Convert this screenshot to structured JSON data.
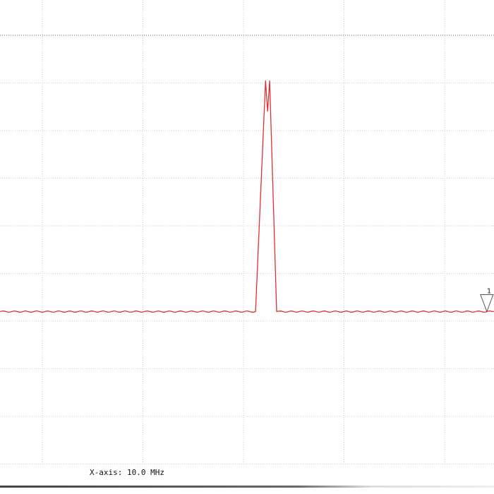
{
  "xaxis_label": "X-axis: 10.0 MHz",
  "marker_label": "1",
  "colors": {
    "trace": "#e03030",
    "grid": "#cccccc",
    "reference_line": "#666666"
  },
  "chart_data": {
    "type": "line",
    "title": "",
    "xlabel": "X-axis: 10.0 MHz",
    "ylabel": "",
    "x_units": "MHz (0 at first visible vertical gridline)",
    "y_units": "divisions (0 at top reference line)",
    "xlim": [
      -4.2,
      44.9
    ],
    "ylim": [
      -9.0,
      0.75
    ],
    "grid": true,
    "series": [
      {
        "points": [
          [
            -4.2,
            -5.8
          ],
          [
            21.2,
            -5.8
          ],
          [
            22.2,
            -0.95
          ],
          [
            22.4,
            -1.6
          ],
          [
            22.6,
            -0.95
          ],
          [
            23.3,
            -5.8
          ],
          [
            44.9,
            -5.8
          ]
        ]
      }
    ],
    "markers": [
      {
        "label": "1",
        "x": 44.2,
        "y": -5.8
      }
    ]
  }
}
